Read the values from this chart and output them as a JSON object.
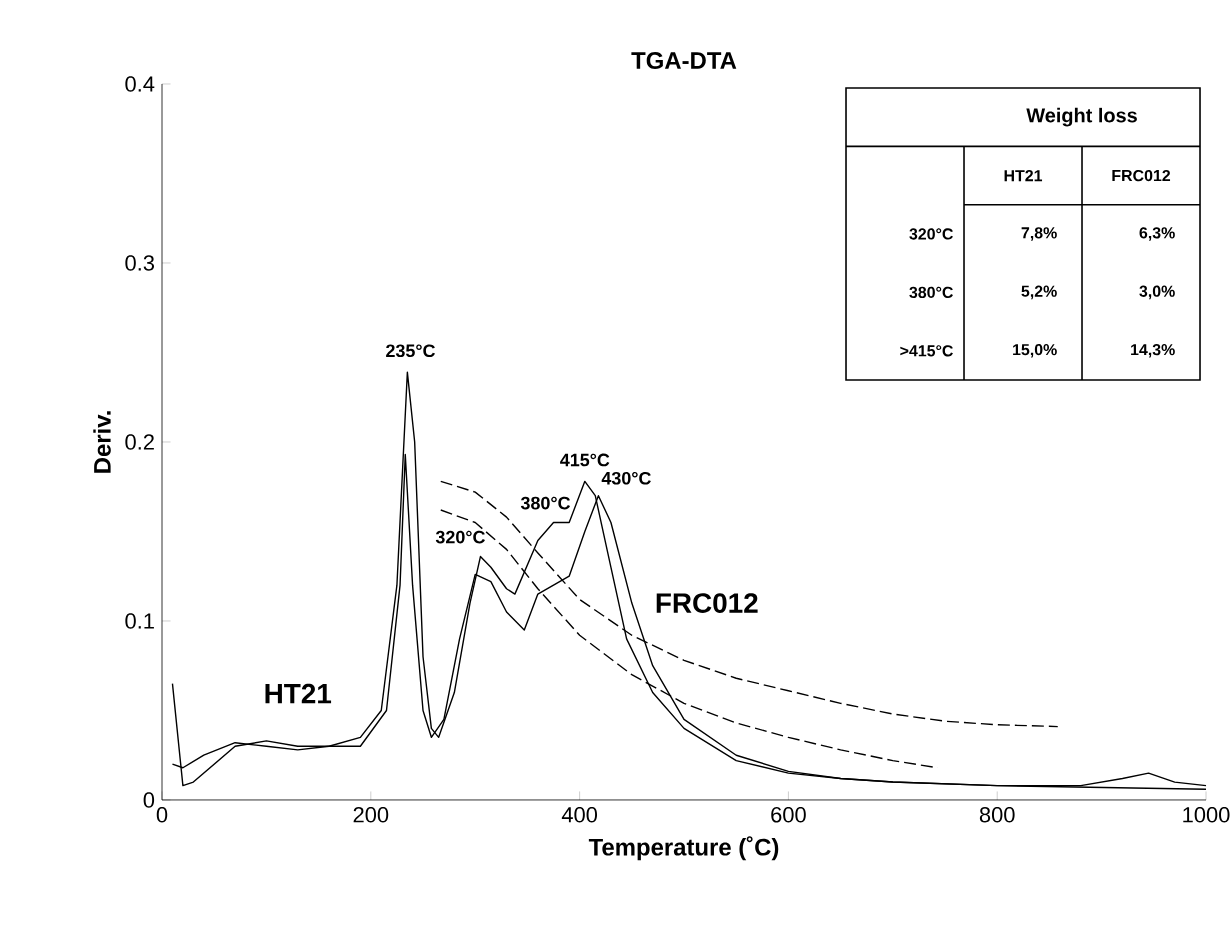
{
  "chart_data": [
    {
      "type": "line",
      "title": "TGA-DTA",
      "xlabel": "Temperature (˚C)",
      "ylabel": "Deriv.",
      "xlim": [
        0,
        1000
      ],
      "ylim": [
        0,
        0.4
      ],
      "xticks": [
        0,
        200,
        400,
        600,
        800,
        1000
      ],
      "yticks": [
        0,
        0.1,
        0.2,
        0.3,
        0.4
      ],
      "marker": "none",
      "series": [
        {
          "name": "HT21",
          "color": "#000000",
          "line_style": "solid",
          "x": [
            10,
            20,
            30,
            50,
            70,
            100,
            130,
            160,
            190,
            210,
            225,
            235,
            242,
            250,
            258,
            265,
            280,
            295,
            305,
            315,
            330,
            338,
            360,
            375,
            390,
            405,
            415,
            430,
            445,
            470,
            500,
            550,
            600,
            650,
            700,
            800,
            1000
          ],
          "values": [
            0.065,
            0.008,
            0.01,
            0.02,
            0.03,
            0.033,
            0.03,
            0.03,
            0.035,
            0.05,
            0.12,
            0.239,
            0.2,
            0.08,
            0.04,
            0.035,
            0.06,
            0.11,
            0.136,
            0.13,
            0.118,
            0.115,
            0.145,
            0.155,
            0.155,
            0.178,
            0.17,
            0.13,
            0.09,
            0.06,
            0.04,
            0.022,
            0.015,
            0.012,
            0.01,
            0.008,
            0.006
          ]
        },
        {
          "name": "FRC012",
          "color": "#000000",
          "line_style": "solid",
          "x": [
            10,
            20,
            40,
            70,
            100,
            130,
            160,
            190,
            215,
            228,
            233,
            240,
            250,
            258,
            270,
            285,
            300,
            315,
            330,
            347,
            360,
            375,
            390,
            405,
            418,
            430,
            450,
            470,
            500,
            550,
            600,
            650,
            700,
            800,
            880,
            920,
            945,
            970,
            1000
          ],
          "values": [
            0.02,
            0.018,
            0.025,
            0.032,
            0.03,
            0.028,
            0.03,
            0.03,
            0.05,
            0.12,
            0.193,
            0.12,
            0.05,
            0.035,
            0.045,
            0.09,
            0.126,
            0.122,
            0.105,
            0.095,
            0.115,
            0.12,
            0.125,
            0.15,
            0.17,
            0.155,
            0.11,
            0.075,
            0.045,
            0.025,
            0.016,
            0.012,
            0.01,
            0.008,
            0.008,
            0.012,
            0.015,
            0.01,
            0.008
          ]
        },
        {
          "color": "#000000",
          "line_style": "dashed",
          "x": [
            267,
            300,
            330,
            360,
            400,
            450,
            500,
            550,
            600,
            650,
            700,
            750,
            800,
            858
          ],
          "values": [
            0.178,
            0.172,
            0.158,
            0.138,
            0.112,
            0.092,
            0.078,
            0.068,
            0.061,
            0.054,
            0.048,
            0.044,
            0.042,
            0.041
          ]
        },
        {
          "color": "#000000",
          "line_style": "dashed",
          "x": [
            267,
            300,
            330,
            360,
            400,
            450,
            500,
            550,
            600,
            650,
            700,
            743
          ],
          "values": [
            0.162,
            0.155,
            0.14,
            0.118,
            0.092,
            0.07,
            0.054,
            0.043,
            0.035,
            0.028,
            0.022,
            0.018
          ]
        }
      ],
      "annotations": [
        {
          "text": "235°C",
          "x": 238,
          "y": 0.239
        },
        {
          "text": "320°C",
          "x": 305,
          "y": 0.136
        },
        {
          "text": "380°C",
          "x": 375,
          "y": 0.155
        },
        {
          "text": "415°C",
          "x": 405,
          "y": 0.178
        },
        {
          "text": "430°C",
          "x": 418,
          "y": 0.17
        }
      ]
    },
    {
      "type": "other",
      "title": "Weight loss",
      "annotations": [
        "HT21",
        "FRC012",
        "320°C",
        "7,8%",
        "6,3%",
        "380°C",
        "5,2%",
        "3,0%",
        ">415°C",
        "15,0%",
        "14,3%"
      ]
    }
  ]
}
